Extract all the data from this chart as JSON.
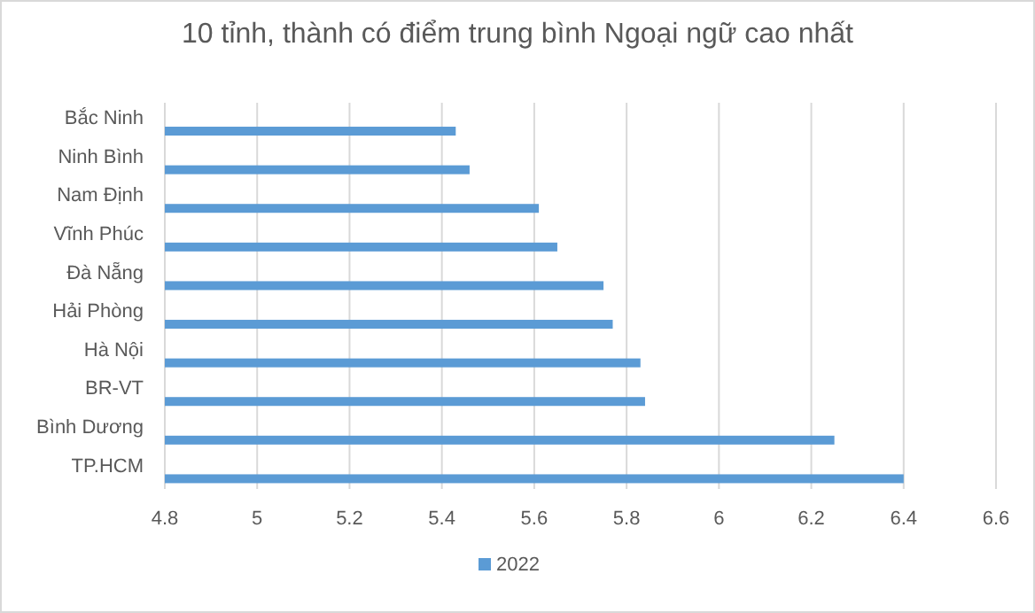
{
  "chart_data": {
    "type": "bar",
    "orientation": "horizontal",
    "title": "10 tỉnh, thành có điểm trung bình Ngoại ngữ cao nhất",
    "categories": [
      "Bắc Ninh",
      "Ninh Bình",
      "Nam Định",
      "Vĩnh Phúc",
      "Đà Nẵng",
      "Hải Phòng",
      "Hà Nội",
      "BR-VT",
      "Bình Dương",
      "TP.HCM"
    ],
    "series": [
      {
        "name": "2022",
        "color": "#5b9bd5",
        "values": [
          5.43,
          5.46,
          5.61,
          5.65,
          5.75,
          5.77,
          5.83,
          5.84,
          6.25,
          6.4
        ]
      }
    ],
    "xlim": [
      4.8,
      6.6
    ],
    "xticks": [
      4.8,
      5,
      5.2,
      5.4,
      5.6,
      5.8,
      6,
      6.2,
      6.4,
      6.6
    ],
    "grid": "x",
    "legend": "bottom"
  }
}
